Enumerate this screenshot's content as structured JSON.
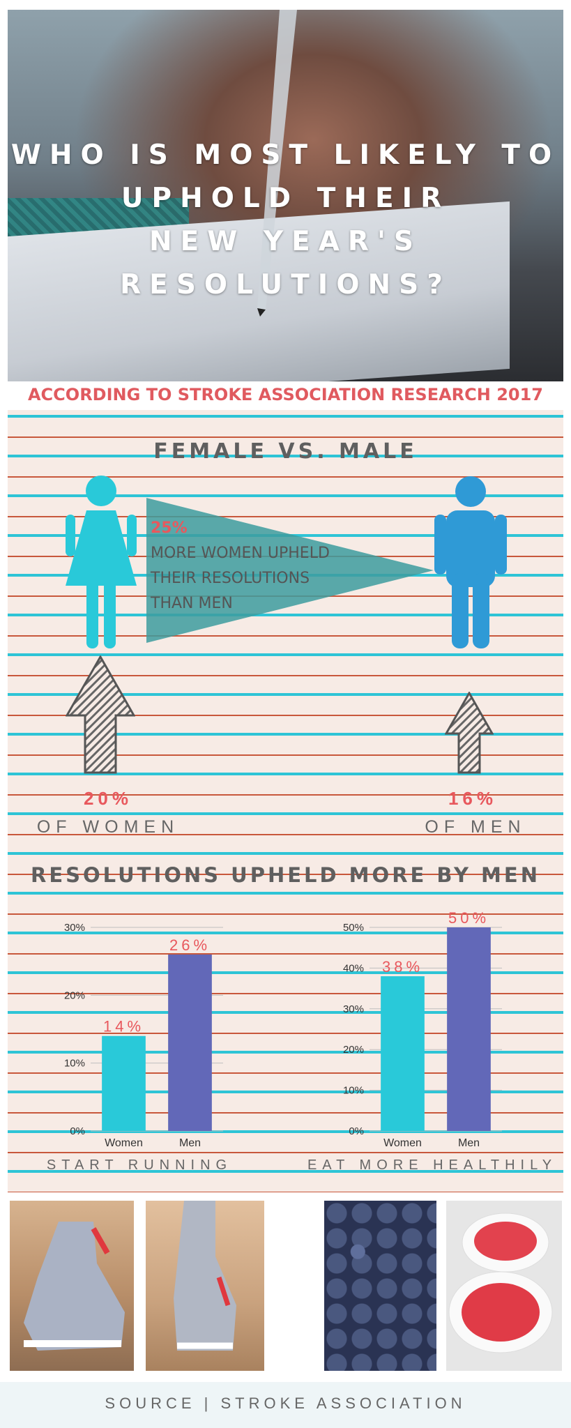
{
  "header": {
    "title_lines": [
      "WHO IS MOST LIKELY TO",
      "UPHOLD THEIR",
      "NEW YEAR'S RESOLUTIONS?"
    ],
    "research_line": "ACCORDING TO STROKE ASSOCIATION RESEARCH 2017"
  },
  "comparison": {
    "heading": "FEMALE VS. MALE",
    "highlight_pct": "25%",
    "highlight_lines": [
      "MORE WOMEN UPHELD",
      "THEIR RESOLUTIONS",
      "THAN MEN"
    ],
    "women_pct": "20%",
    "women_label": "OF WOMEN",
    "men_pct": "16%",
    "men_label": "OF MEN"
  },
  "section2": {
    "heading": "RESOLUTIONS UPHELD MORE BY MEN"
  },
  "chart_data": [
    {
      "type": "bar",
      "title": "START RUNNING",
      "categories": [
        "Women",
        "Men"
      ],
      "values": [
        14,
        26
      ],
      "value_labels": [
        "14%",
        "26%"
      ],
      "yticks": [
        "0%",
        "10%",
        "20%",
        "30%"
      ],
      "ylim": [
        0,
        30
      ],
      "colors": [
        "#29c9d9",
        "#6268b8"
      ]
    },
    {
      "type": "bar",
      "title": "EAT MORE HEALTHILY",
      "categories": [
        "Women",
        "Men"
      ],
      "values": [
        38,
        50
      ],
      "value_labels": [
        "38%",
        "50%"
      ],
      "yticks": [
        "0%",
        "10%",
        "20%",
        "30%",
        "40%",
        "50%"
      ],
      "ylim": [
        0,
        50
      ],
      "colors": [
        "#29c9d9",
        "#6268b8"
      ]
    }
  ],
  "footer": {
    "source": "SOURCE | STROKE ASSOCIATION"
  },
  "colors": {
    "accent": "#e8585d",
    "women": "#29c9d9",
    "men": "#2f9ad6",
    "triangle": "#3d9c9f"
  }
}
